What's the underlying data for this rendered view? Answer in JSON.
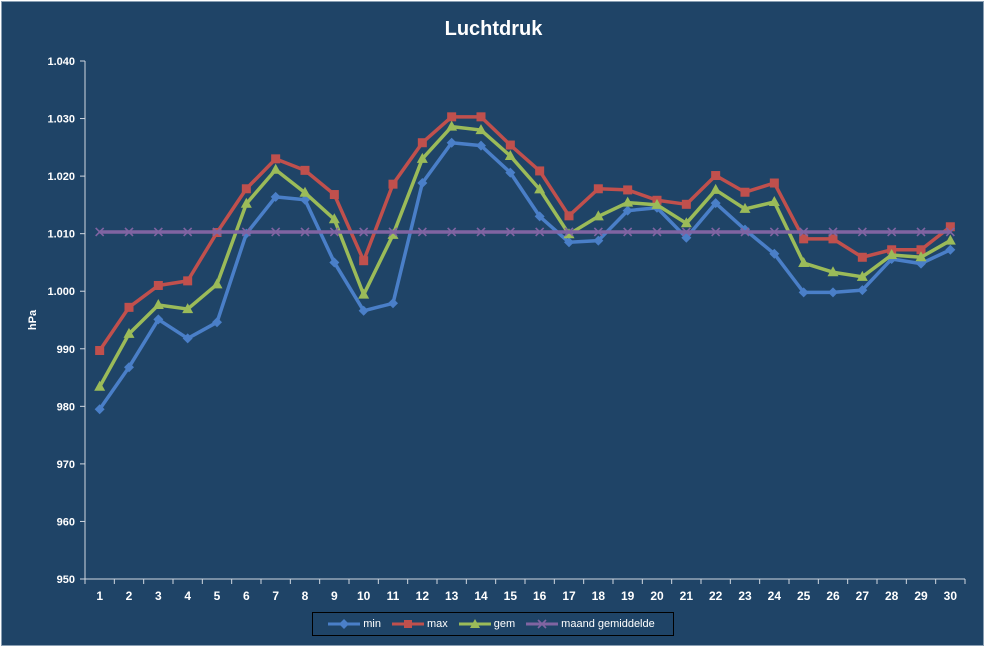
{
  "chart_data": {
    "type": "line",
    "title": "Luchtdruk",
    "xlabel": "",
    "ylabel": "hPa",
    "ylim": [
      950,
      1040
    ],
    "yticks": [
      950,
      960,
      970,
      980,
      990,
      1000,
      1010,
      1020,
      1030,
      1040
    ],
    "ytick_labels": [
      "950",
      "960",
      "970",
      "980",
      "990",
      "1.000",
      "1.010",
      "1.020",
      "1.030",
      "1.040"
    ],
    "categories": [
      "1",
      "2",
      "3",
      "4",
      "5",
      "6",
      "7",
      "8",
      "9",
      "10",
      "11",
      "12",
      "13",
      "14",
      "15",
      "16",
      "17",
      "18",
      "19",
      "20",
      "21",
      "22",
      "23",
      "24",
      "25",
      "26",
      "27",
      "28",
      "29",
      "30"
    ],
    "grid": false,
    "legend_position": "bottom",
    "series": [
      {
        "name": "min",
        "color": "#4a7fc8",
        "marker": "diamond",
        "values": [
          979.5,
          986.8,
          995.1,
          991.8,
          994.6,
          1010.0,
          1016.4,
          1015.9,
          1005.0,
          996.6,
          997.9,
          1018.8,
          1025.8,
          1025.3,
          1020.6,
          1013.0,
          1008.5,
          1008.8,
          1014.0,
          1014.5,
          1009.3,
          1015.3,
          1010.7,
          1006.5,
          999.8,
          999.8,
          1000.2,
          1005.6,
          1004.8,
          1007.2
        ]
      },
      {
        "name": "max",
        "color": "#c0504d",
        "marker": "square",
        "values": [
          989.7,
          997.2,
          1001.0,
          1001.8,
          1010.2,
          1017.8,
          1023.0,
          1021.0,
          1016.8,
          1005.3,
          1018.6,
          1025.8,
          1030.3,
          1030.3,
          1025.4,
          1020.9,
          1013.1,
          1017.8,
          1017.6,
          1015.8,
          1015.1,
          1020.1,
          1017.2,
          1018.8,
          1009.1,
          1009.1,
          1005.9,
          1007.2,
          1007.2,
          1011.2
        ]
      },
      {
        "name": "gem",
        "color": "#9bbb59",
        "marker": "triangle",
        "values": [
          983.4,
          992.6,
          997.6,
          996.9,
          1001.2,
          1015.2,
          1021.1,
          1017.1,
          1012.5,
          999.4,
          1009.8,
          1023.0,
          1028.6,
          1028.0,
          1023.5,
          1017.7,
          1009.9,
          1013.0,
          1015.4,
          1015.0,
          1011.8,
          1017.6,
          1014.3,
          1015.5,
          1004.9,
          1003.3,
          1002.5,
          1006.3,
          1005.9,
          1008.8
        ]
      },
      {
        "name": "maand gemiddelde",
        "color": "#8064a2",
        "marker": "x",
        "values": [
          1010.3,
          1010.3,
          1010.3,
          1010.3,
          1010.3,
          1010.3,
          1010.3,
          1010.3,
          1010.3,
          1010.3,
          1010.3,
          1010.3,
          1010.3,
          1010.3,
          1010.3,
          1010.3,
          1010.3,
          1010.3,
          1010.3,
          1010.3,
          1010.3,
          1010.3,
          1010.3,
          1010.3,
          1010.3,
          1010.3,
          1010.3,
          1010.3,
          1010.3,
          1010.3
        ]
      }
    ]
  }
}
